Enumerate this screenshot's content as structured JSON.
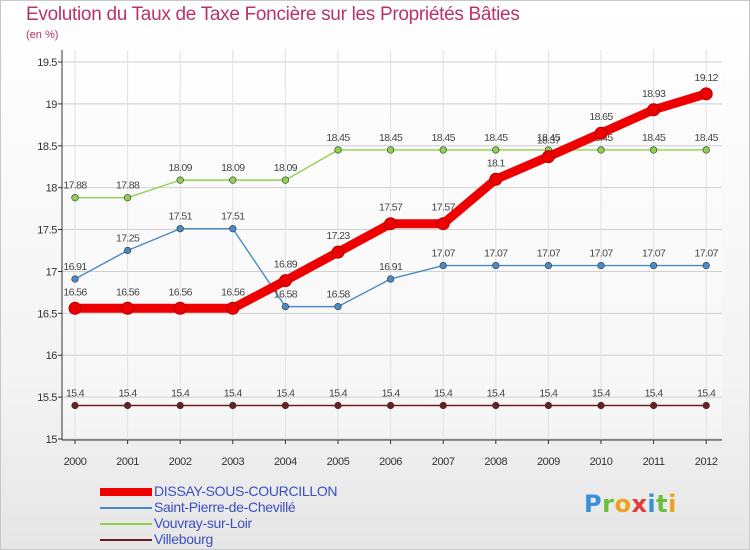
{
  "title": "Evolution du Taux de Taxe Foncière sur les Propriétés Bâties",
  "subtitle": "(en %)",
  "logo": {
    "p": "P",
    "r": "r",
    "o": "o",
    "x": "x",
    "i": "i",
    "t": "t",
    "i2": "i"
  },
  "chart_data": {
    "type": "line",
    "title": "Evolution du Taux de Taxe Foncière sur les Propriétés Bâties",
    "ylabel": "(en %)",
    "xlabel": "",
    "x": [
      "2000",
      "2001",
      "2002",
      "2003",
      "2004",
      "2005",
      "2006",
      "2007",
      "2008",
      "2009",
      "2010",
      "2011",
      "2012"
    ],
    "ylim": [
      15,
      19.5
    ],
    "yticks": [
      "15",
      "15.5",
      "16",
      "16.5",
      "17",
      "17.5",
      "18",
      "18.5",
      "19",
      "19.5"
    ],
    "grid": true,
    "legend_position": "bottom-left",
    "series": [
      {
        "name": "Villebourg",
        "color": "#6b1f24",
        "values": [
          15.4,
          15.4,
          15.4,
          15.4,
          15.4,
          15.4,
          15.4,
          15.4,
          15.4,
          15.4,
          15.4,
          15.4,
          15.4
        ],
        "labels": [
          "15.4",
          "15.4",
          "15.4",
          "15.4",
          "15.4",
          "15.4",
          "15.4",
          "15.4",
          "15.4",
          "15.4",
          "15.4",
          "15.4",
          "15.4"
        ],
        "thick": false
      },
      {
        "name": "Vouvray-sur-Loir",
        "color": "#8fd14f",
        "values": [
          17.88,
          17.88,
          18.09,
          18.09,
          18.09,
          18.45,
          18.45,
          18.45,
          18.45,
          18.45,
          18.45,
          18.45,
          18.45
        ],
        "labels": [
          "17.88",
          "17.88",
          "18.09",
          "18.09",
          "18.09",
          "18.45",
          "18.45",
          "18.45",
          "18.45",
          "18.45",
          "18.45",
          "18.45",
          "18.45"
        ],
        "thick": false
      },
      {
        "name": "Saint-Pierre-de-Chevillé",
        "color": "#4a8ac6",
        "values": [
          16.91,
          17.25,
          17.51,
          17.51,
          16.58,
          16.58,
          16.91,
          17.07,
          17.07,
          17.07,
          17.07,
          17.07,
          17.07
        ],
        "labels": [
          "16.91",
          "17.25",
          "17.51",
          "17.51",
          "16.58",
          "16.58",
          "16.91",
          "17.07",
          "17.07",
          "17.07",
          "17.07",
          "17.07",
          "17.07"
        ],
        "thick": false
      },
      {
        "name": "DISSAY-SOUS-COURCILLON",
        "color": "#ee0000",
        "values": [
          16.56,
          16.56,
          16.56,
          16.56,
          16.89,
          17.23,
          17.57,
          17.57,
          18.1,
          18.37,
          18.65,
          18.93,
          19.12
        ],
        "labels": [
          "16.56",
          "16.56",
          "16.56",
          "16.56",
          "16.89",
          "17.23",
          "17.57",
          "17.57",
          "18.1",
          "18.37",
          "18.65",
          "18.93",
          "19.12"
        ],
        "thick": true
      }
    ],
    "legend": [
      {
        "name": "DISSAY-SOUS-COURCILLON",
        "color": "#ee0000",
        "thick": true
      },
      {
        "name": "Saint-Pierre-de-Chevillé",
        "color": "#4a8ac6",
        "thick": false
      },
      {
        "name": "Vouvray-sur-Loir",
        "color": "#8fd14f",
        "thick": false
      },
      {
        "name": "Villebourg",
        "color": "#6b1f24",
        "thick": false
      }
    ]
  }
}
